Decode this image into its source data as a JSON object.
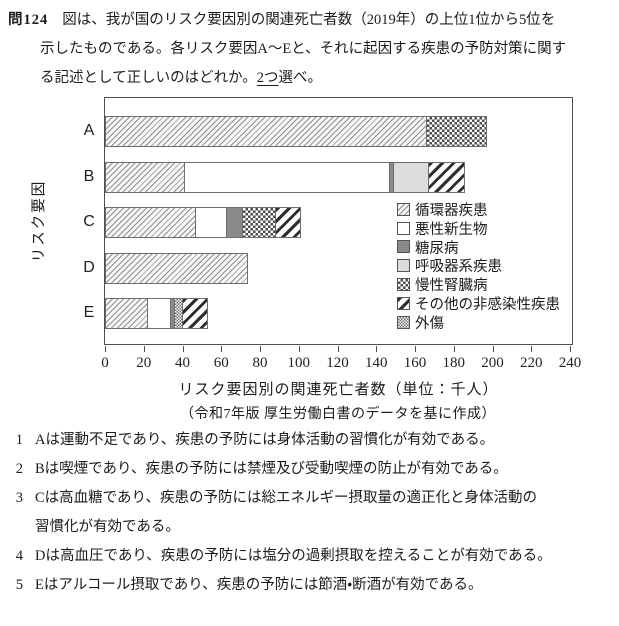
{
  "question": {
    "number": "問124",
    "line1": "図は、我が国のリスク要因別の関連死亡者数（2019年）の上位1位から5位を",
    "line2": "示したものである。各リスク要因A～Eと、それに起因する疾患の予防対策に関す",
    "line3_pre": "る記述として正しいのはどれか。",
    "line3_underline": "2つ",
    "line3_post": "選べ。"
  },
  "chart_data": {
    "type": "bar",
    "orientation": "horizontal-stacked",
    "title": "",
    "xlabel": "リスク要因別の関連死亡者数（単位：千人）",
    "ylabel": "リスク要因",
    "source": "（令和7年版 厚生労働白書のデータを基に作成）",
    "xlim": [
      0,
      242
    ],
    "xticks": [
      0,
      20,
      40,
      60,
      80,
      100,
      120,
      140,
      160,
      180,
      200,
      220,
      240
    ],
    "grid": false,
    "legend_position": "inside-right",
    "legend": [
      {
        "label": "循環器疾患",
        "pattern": "diag-hatch"
      },
      {
        "label": "悪性新生物",
        "pattern": "white"
      },
      {
        "label": "糖尿病",
        "pattern": "dark-gray"
      },
      {
        "label": "呼吸器系疾患",
        "pattern": "light-gray"
      },
      {
        "label": "慢性腎臓病",
        "pattern": "checker"
      },
      {
        "label": "その他の非感染性疾患",
        "pattern": "bold-stripe"
      },
      {
        "label": "外傷",
        "pattern": "dot-grid"
      }
    ],
    "categories": [
      "A",
      "B",
      "C",
      "D",
      "E"
    ],
    "bars": [
      {
        "label": "A",
        "total": 196,
        "segments": [
          {
            "name": "循環器疾患",
            "value": 165
          },
          {
            "name": "慢性腎臓病",
            "value": 31
          }
        ]
      },
      {
        "label": "B",
        "total": 185,
        "segments": [
          {
            "name": "循環器疾患",
            "value": 40
          },
          {
            "name": "悪性新生物",
            "value": 106
          },
          {
            "name": "糖尿病",
            "value": 2
          },
          {
            "name": "呼吸器系疾患",
            "value": 18
          },
          {
            "name": "その他の非感染性疾患",
            "value": 19
          }
        ]
      },
      {
        "label": "C",
        "total": 100,
        "segments": [
          {
            "name": "循環器疾患",
            "value": 46
          },
          {
            "name": "悪性新生物",
            "value": 16
          },
          {
            "name": "糖尿病",
            "value": 8
          },
          {
            "name": "慢性腎臓病",
            "value": 17
          },
          {
            "name": "その他の非感染性疾患",
            "value": 13
          }
        ]
      },
      {
        "label": "D",
        "total": 73,
        "segments": [
          {
            "name": "循環器疾患",
            "value": 73
          }
        ]
      },
      {
        "label": "E",
        "total": 52,
        "segments": [
          {
            "name": "循環器疾患",
            "value": 21
          },
          {
            "name": "悪性新生物",
            "value": 12
          },
          {
            "name": "糖尿病",
            "value": 2
          },
          {
            "name": "外傷",
            "value": 4
          },
          {
            "name": "その他の非感染性疾患",
            "value": 13
          }
        ]
      }
    ]
  },
  "options": [
    {
      "num": "1",
      "line1": "Aは運動不足であり、疾患の予防には身体活動の習慣化が有効である。",
      "line2": ""
    },
    {
      "num": "2",
      "line1": "Bは喫煙であり、疾患の予防には禁煙及び受動喫煙の防止が有効である。",
      "line2": ""
    },
    {
      "num": "3",
      "line1": "Cは高血糖であり、疾患の予防には総エネルギー摂取量の適正化と身体活動の",
      "line2": "習慣化が有効である。"
    },
    {
      "num": "4",
      "line1": "Dは高血圧であり、疾患の予防には塩分の過剰摂取を控えることが有効である。",
      "line2": ""
    },
    {
      "num": "5",
      "line1": "Eはアルコール摂取であり、疾患の予防には節酒・断酒が有効である。",
      "line2": ""
    }
  ]
}
